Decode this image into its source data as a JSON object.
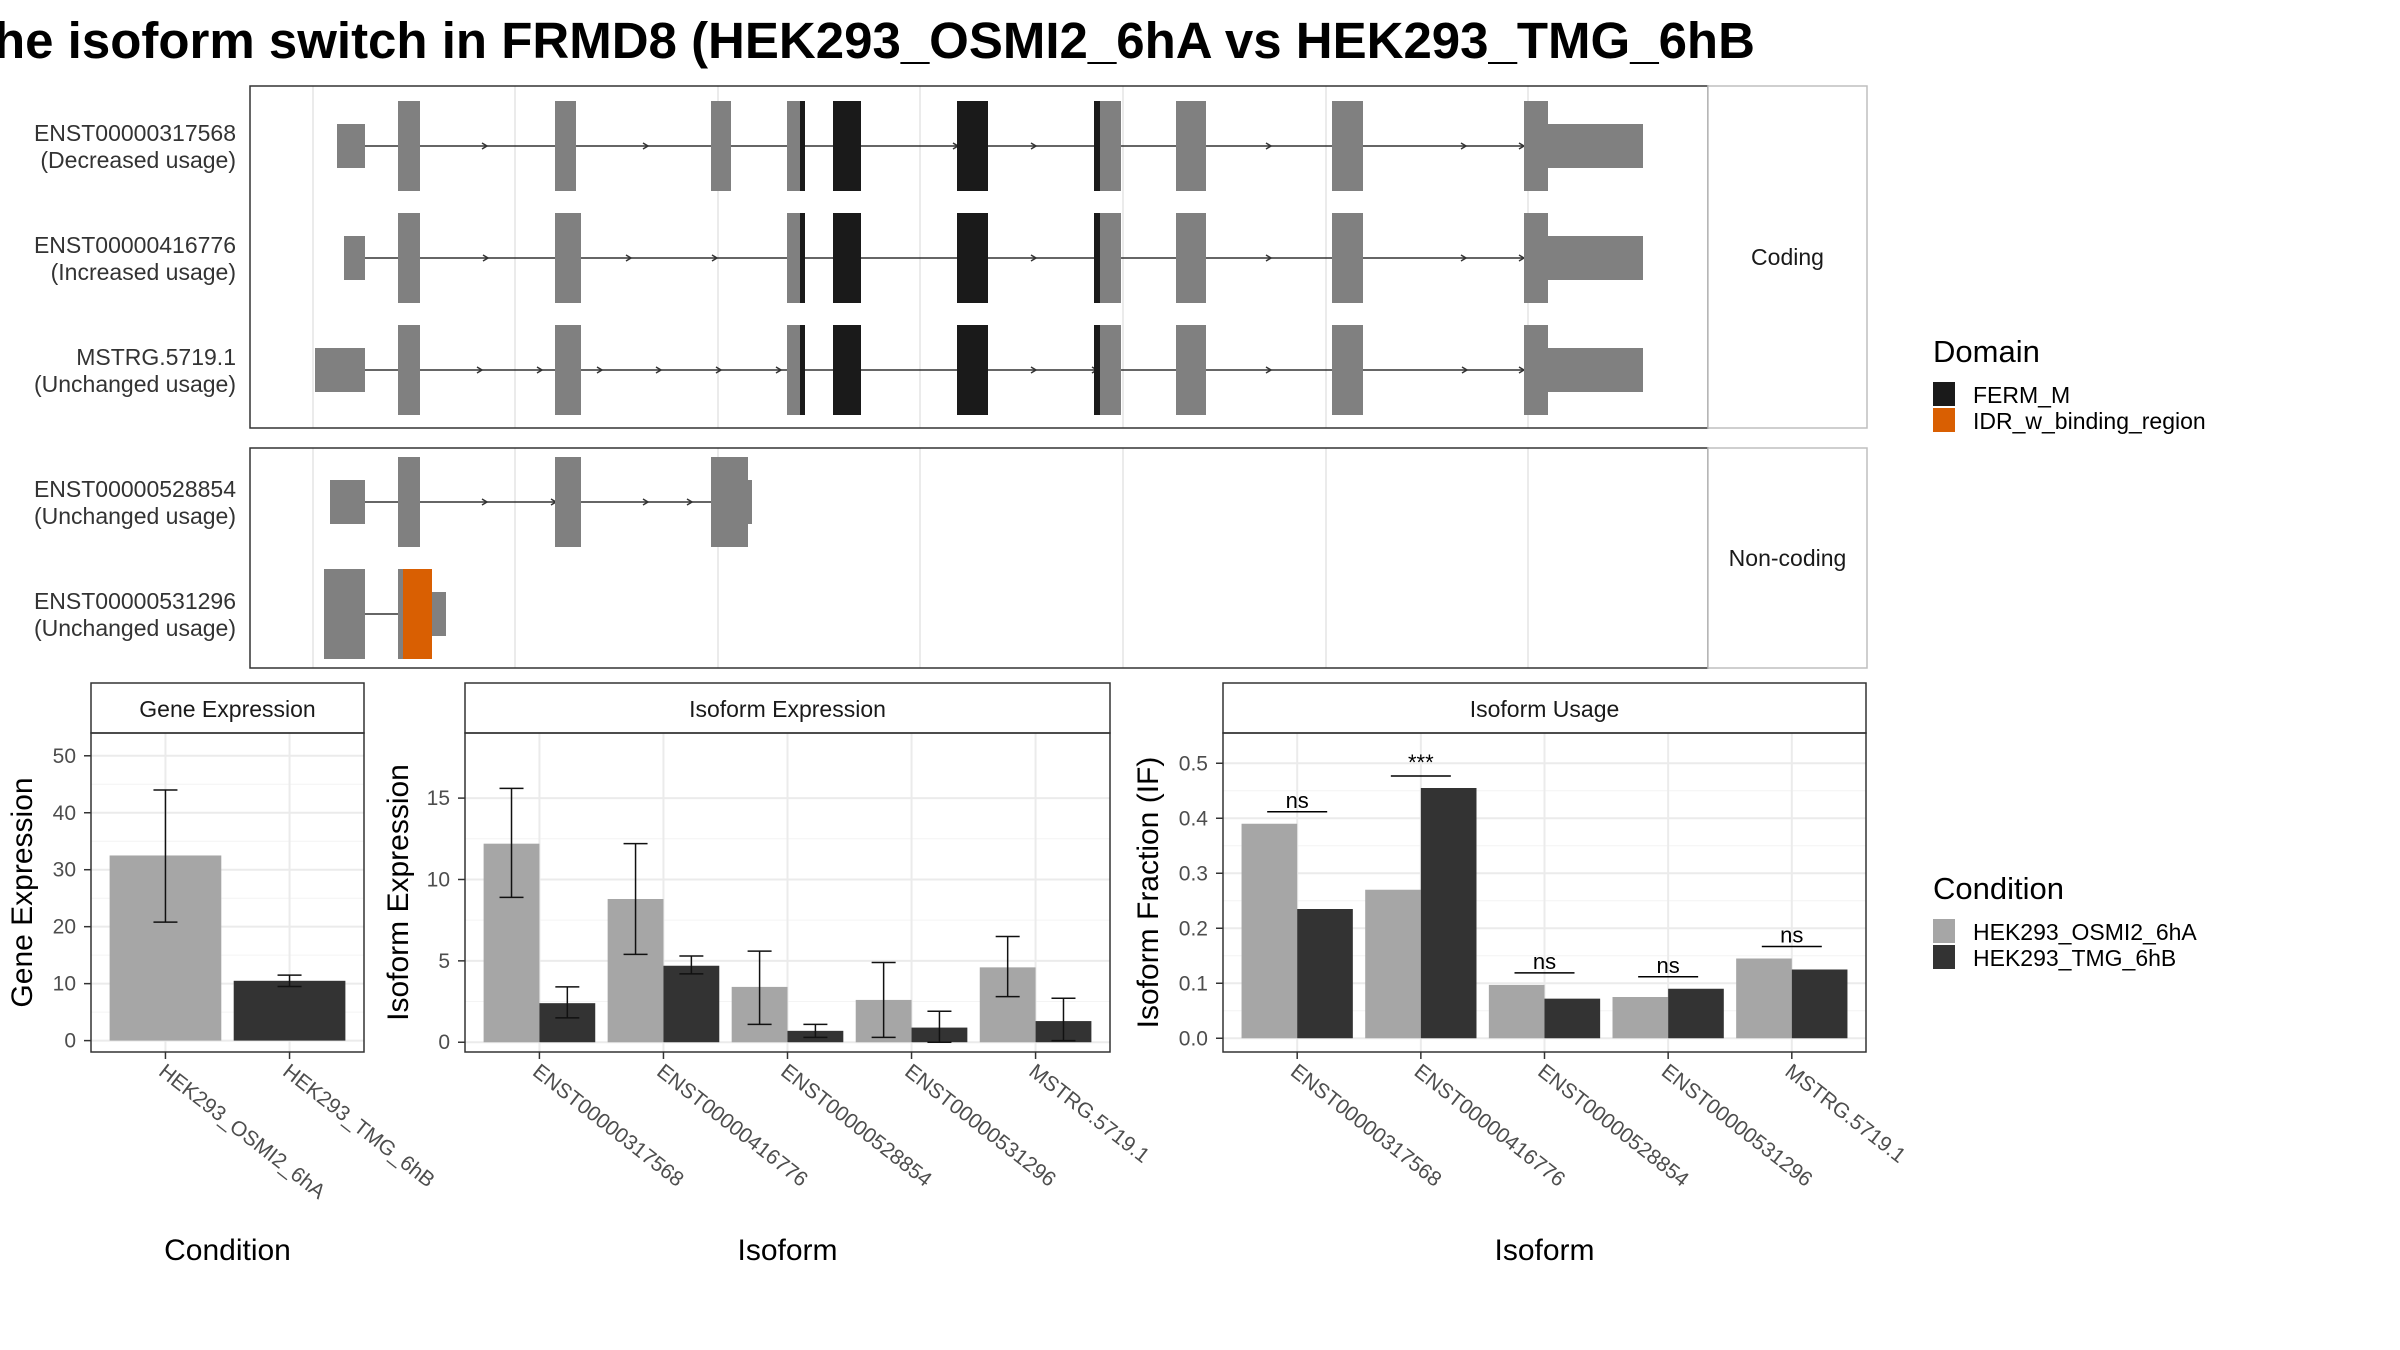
{
  "title": "he isoform switch in FRMD8 (HEK293_OSMI2_6hA vs HEK293_TMG_6hB",
  "colors": {
    "exon": "#808080",
    "ferm": "#1a1a1a",
    "idr": "#d95f02",
    "cond1": "#a6a6a6",
    "cond2": "#333333",
    "grid": "#ebebeb",
    "border": "#333333",
    "strip_border": "#bfbfbf"
  },
  "structure": {
    "facets": [
      {
        "label": "Coding"
      },
      {
        "label": "Non-coding"
      }
    ],
    "transcripts": [
      {
        "id": "ENST00000317568",
        "usage": "(Decreased usage)",
        "facet": 0
      },
      {
        "id": "ENST00000416776",
        "usage": "(Increased usage)",
        "facet": 0
      },
      {
        "id": "MSTRG.5719.1",
        "usage": "(Unchanged usage)",
        "facet": 0
      },
      {
        "id": "ENST00000528854",
        "usage": "(Unchanged usage)",
        "facet": 1
      },
      {
        "id": "ENST00000531296",
        "usage": "(Unchanged usage)",
        "facet": 1
      }
    ]
  },
  "legend_domain": {
    "title": "Domain",
    "items": [
      {
        "label": "FERM_M",
        "color": "#1a1a1a"
      },
      {
        "label": "IDR_w_binding_region",
        "color": "#d95f02"
      }
    ]
  },
  "legend_condition": {
    "title": "Condition",
    "items": [
      {
        "label": "HEK293_OSMI2_6hA",
        "color": "#a6a6a6"
      },
      {
        "label": "HEK293_TMG_6hB",
        "color": "#333333"
      }
    ]
  },
  "chart_data": [
    {
      "type": "bar",
      "panel_title": "Gene Expression",
      "xlabel": "Condition",
      "ylabel": "Gene Expression",
      "categories": [
        "HEK293_OSMI2_6hA",
        "HEK293_TMG_6hB"
      ],
      "values": [
        32.5,
        10.5
      ],
      "errors": [
        [
          20.8,
          44.0
        ],
        [
          9.5,
          11.5
        ]
      ],
      "ylim": [
        -2,
        54
      ],
      "yticks": [
        0,
        10,
        20,
        30,
        40,
        50
      ]
    },
    {
      "type": "bar",
      "panel_title": "Isoform Expression",
      "xlabel": "Isoform",
      "ylabel": "Isoform Expression",
      "categories": [
        "ENST00000317568",
        "ENST00000416776",
        "ENST00000528854",
        "ENST00000531296",
        "MSTRG.5719.1"
      ],
      "series": [
        {
          "name": "HEK293_OSMI2_6hA",
          "values": [
            12.2,
            8.8,
            3.4,
            2.6,
            4.6
          ],
          "errors": [
            [
              8.9,
              15.6
            ],
            [
              5.4,
              12.2
            ],
            [
              1.1,
              5.6
            ],
            [
              0.3,
              4.9
            ],
            [
              2.8,
              6.5
            ]
          ]
        },
        {
          "name": "HEK293_TMG_6hB",
          "values": [
            2.4,
            4.7,
            0.7,
            0.9,
            1.3
          ],
          "errors": [
            [
              1.5,
              3.4
            ],
            [
              4.2,
              5.3
            ],
            [
              0.3,
              1.1
            ],
            [
              0.0,
              1.9
            ],
            [
              0.1,
              2.7
            ]
          ]
        }
      ],
      "ylim": [
        -0.6,
        19
      ],
      "yticks": [
        0,
        5,
        10,
        15
      ]
    },
    {
      "type": "bar",
      "panel_title": "Isoform Usage",
      "xlabel": "Isoform",
      "ylabel": "Isoform Fraction (IF)",
      "categories": [
        "ENST00000317568",
        "ENST00000416776",
        "ENST00000528854",
        "ENST00000531296",
        "MSTRG.5719.1"
      ],
      "series": [
        {
          "name": "HEK293_OSMI2_6hA",
          "values": [
            0.39,
            0.27,
            0.097,
            0.075,
            0.145
          ]
        },
        {
          "name": "HEK293_TMG_6hB",
          "values": [
            0.235,
            0.455,
            0.072,
            0.09,
            0.125
          ]
        }
      ],
      "significance": [
        "ns",
        "***",
        "ns",
        "ns",
        "ns"
      ],
      "ylim": [
        -0.025,
        0.555
      ],
      "yticks": [
        0.0,
        0.1,
        0.2,
        0.3,
        0.4,
        0.5
      ],
      "yticklabels": [
        "0.0",
        "0.1",
        "0.2",
        "0.3",
        "0.4",
        "0.5"
      ]
    }
  ]
}
